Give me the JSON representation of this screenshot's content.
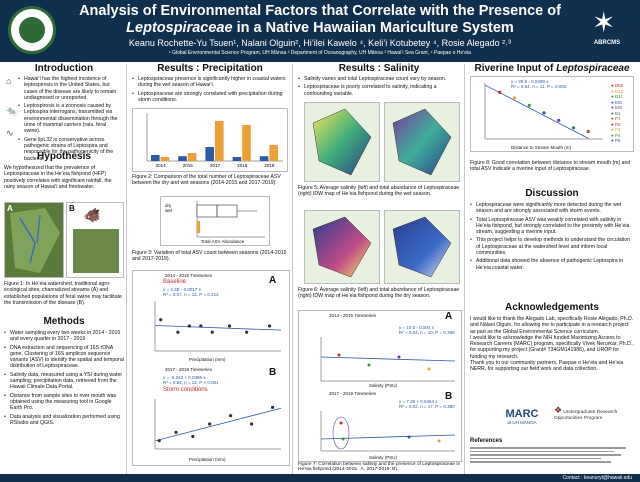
{
  "header": {
    "title_line1": "Analysis of Environmental Factors that Correlate with the Presence of",
    "title_line2_em": "Leptospiraceae",
    "title_line2_rest": " in a Native Hawaiian Mariculture System",
    "authors": "Keanu Rochette-Yu Tsuen¹, Nalani Olguin², Hi’ilei Kawelo ⁴, Keli’i Kotubetey ⁴, Rosie Alegado ²˒³",
    "affiliations": "¹ Global Environmental Science Program, UH Mānoa ² Department of Oceanography, UH Mānoa ³ Hawaiʻi Sea Grant, ⁴ Paepae o He’eia",
    "right_logo": "ABRCMS"
  },
  "intro": {
    "heading": "Introduction",
    "items": [
      "Hawai’i has the highest incidence of leptospirosis in the United States, but cases of the disease are likely to remain undiagnosed or unreported.",
      "Leptospirosis is a zoonosis caused by Leptospira interrogans, transmitted via environmental dissemination through the urine of mammal carriers (rats, feral swine).",
      "Gene lipL32 is conservative across pathogenic strains of Leptospira and responsible for the pathogenicity of the bacteria."
    ]
  },
  "hypothesis": {
    "heading": "Hypothesis",
    "text": "We hypothesized that the prevalence of Leptospiraceae in the He’eia fishpond (HFP) positively correlates with significant rainfall, the rainy season of Hawai’i and freshwater.",
    "fig1_caption": "Figure 1: In He’eia watershed, traditional agro-ecological sites, channelized streams (A) and established populations of feral swine may facilitate the transmission of the disease (B).",
    "label_a": "A",
    "label_b": "B"
  },
  "methods": {
    "heading": "Methods",
    "items": [
      "Water sampling every two weeks in 2014 - 2015 and every quarter in 2017 - 2019",
      "DNA extraction and sequencing of 16S rDNA gene. Clustering of 16S amplicon sequence variants (ASV) to identify the spatial and temporal distribution of Leptospiraceae.",
      "Salinity data, measured using a YSI during water sampling; precipitation data, retrieved from the Hawaii Climate Data Portal.",
      "Distance from sample sites to river mouth was obtained using the measuring tool in Google Earth Pro.",
      "Data analysis and visualization performed using RStudio and QGIS."
    ]
  },
  "precip": {
    "heading": "Results : Precipitation",
    "items": [
      "Leptospiraceae presence is significantly higher in coastal waters during the wet season of Hawai’i.",
      "Leptospiraceae are strongly correlated with precipitation during storm conditions."
    ],
    "fig2_caption": "Figure 2: Comparison of the total number of Leptospiraceae ASV between the dry and wet seasons (2014-2015 and 2017-2019).",
    "fig3_caption": "Figure 3: Variation of total ASV count between seasons (2014-2015 and 2017-2019).",
    "fig4_caption": "Figure 4: Correlation between Leptospiraceae ASV and precipitation in non-storm (A) and storm (B) conditions.",
    "fig4_top_title": "2014 - 2015 Timeseries",
    "fig4_top_tag": "Baseline",
    "fig4_top_eq": "y = 4.3E - 0.0017 x",
    "fig4_top_r": "R² = 0.07, n = 12, P = 0.412",
    "fig4_bot_title": "2017 - 2019 Timeseries",
    "fig4_bot_tag": "Storm conditions",
    "fig4_bot_eq": "y = -5.243 + 0.0385 x",
    "fig4_bot_r": "R² = 0.84, n = 12, P < 0.001",
    "fig4_xlabel": "Precipitation (mm)",
    "panel_a": "A",
    "panel_b": "B",
    "fig3_xlabel": "Total ASV Abundance",
    "fig3_legend": [
      "dry",
      "wet"
    ]
  },
  "salinity": {
    "heading": "Results : Salinity",
    "items": [
      "Salinity varies and total Leptospiraceae count vary by season.",
      "Leptospiraceae is poorly correlated to salinity, indicating a confounding variable."
    ],
    "fig5_caption": "Figure 5: Average salinity (left) and total abundance of Leptospiraceae (right) IDW map of He’eia fishpond during the wet season.",
    "fig6_caption": "Figure 6: Average salinity (left) and total abundance of Leptospiraceae (right) IDW map of He’eia fishpond during the dry season.",
    "fig7_caption": "Figure 7: Correlation between salinity and the presence of Leptospiraceae in He’eia fishpond (2014-2015 : A, 2017-2019: B).",
    "fig7_top_title": "2014 - 2015 Timeseries",
    "fig7_top_eq": "y = 10.5 - 0.004 x",
    "fig7_top_r": "R² = 0.04, n = 10, P = 0.398",
    "fig7_bot_title": "2017 - 2019 Timeseries",
    "fig7_bot_eq": "y = 7.39 + 0.0454 x",
    "fig7_bot_r": "R² = 0.02, n = 17, P = 0.380",
    "fig7_xlabel": "Salinity (PSU)",
    "panel_a": "A",
    "panel_b": "B"
  },
  "river": {
    "heading_pre": "Riverine Input of ",
    "heading_em": "Leptospiraceae",
    "eq": "y = 28.9 - 0.0408 x",
    "r": "R² = 0.54, n = 11, P = 0.002",
    "xlabel": "Distance to Stream Mouth (m)",
    "legend": [
      "D52",
      "D12",
      "D11",
      "MG",
      "MO",
      "B1",
      "P1",
      "P2",
      "P3",
      "P4",
      "P5"
    ],
    "fig8_caption": "Figure 8: Good correlation between distance to stream mouth (m) and total ASV indicate a riverine input of Leptospiraceae."
  },
  "discussion": {
    "heading": "Discussion",
    "items": [
      "Leptospiraceae were significantly more detected during the wet season and are strongly associated with storm events.",
      "Total Leptospiraceae ASV was weakly correlated with salinity in He’eia fishpond, but strongly correlated to the proximity with He’eia stream, suggesting a riverine input.",
      "This project helps to develop methods to understand the circulation of Leptospiraceae at the watershed level and inform local communities.",
      "Additional data showed the absence of pathogenic Leptospira in He’eia coastal water."
    ]
  },
  "ack": {
    "heading": "Acknowledgements",
    "p1": "I would like to thank the Alegado Lab, specifically Rosie Alegado, Ph.D. and Nālani Olguin, for allowing me to participate in a research project as part as the Global Environmental Science curriculum.",
    "p2": "I would like to acknowledge the NIH funded Maximizing Access to Research Careers (MARC) program, specifically Vivek Nerurkar, Ph.D., for supporting my project (Grant# T34GM141986), and UROP for funding my research.",
    "p3": "Thank you to our community partners, Paepae o He’eia and He’eia NERR, for supporting our field work and data collection.",
    "marc_logo": "MARC",
    "marc_sub": "at UH MĀNOA",
    "urop_logo": "Undergraduate Research Opportunities Program",
    "refs_heading": "References"
  },
  "footer": {
    "contact": "Contact : keanuryt@hawaii.edu"
  },
  "chart_data": [
    {
      "type": "bar",
      "title": "",
      "categories": [
        "2014",
        "2015",
        "2017",
        "2018",
        "2019"
      ],
      "series": [
        {
          "name": "dry",
          "values": [
            1.5,
            1.2,
            3.5,
            1.0,
            1.2
          ]
        },
        {
          "name": "wet",
          "values": [
            1.0,
            2.0,
            10.0,
            9.0,
            4.0
          ]
        }
      ],
      "ylabel": "Leptospiraceae ASV Count",
      "legend_title": "Season",
      "ylim": [
        0,
        12
      ]
    },
    {
      "type": "scatter",
      "title": "2014 - 2015 Timeseries",
      "x": [
        10,
        40,
        60,
        80,
        100,
        130,
        160,
        200
      ],
      "y": [
        5,
        3,
        4,
        4,
        3,
        4,
        3,
        4
      ],
      "xlabel": "Precipitation (mm)"
    },
    {
      "type": "scatter",
      "title": "2017 - 2019 Timeseries",
      "x": [
        10,
        50,
        90,
        130,
        180,
        230,
        280
      ],
      "y": [
        2,
        4,
        3,
        6,
        8,
        6,
        10
      ],
      "xlabel": "Precipitation (mm)"
    },
    {
      "type": "scatter",
      "title": "",
      "x": [
        100,
        200,
        300,
        400,
        500,
        600,
        700
      ],
      "y": [
        25,
        22,
        18,
        14,
        10,
        6,
        4
      ],
      "xlabel": "Distance to Stream Mouth (m)",
      "ylabel": "Leptospiraceae ASV Count"
    }
  ]
}
